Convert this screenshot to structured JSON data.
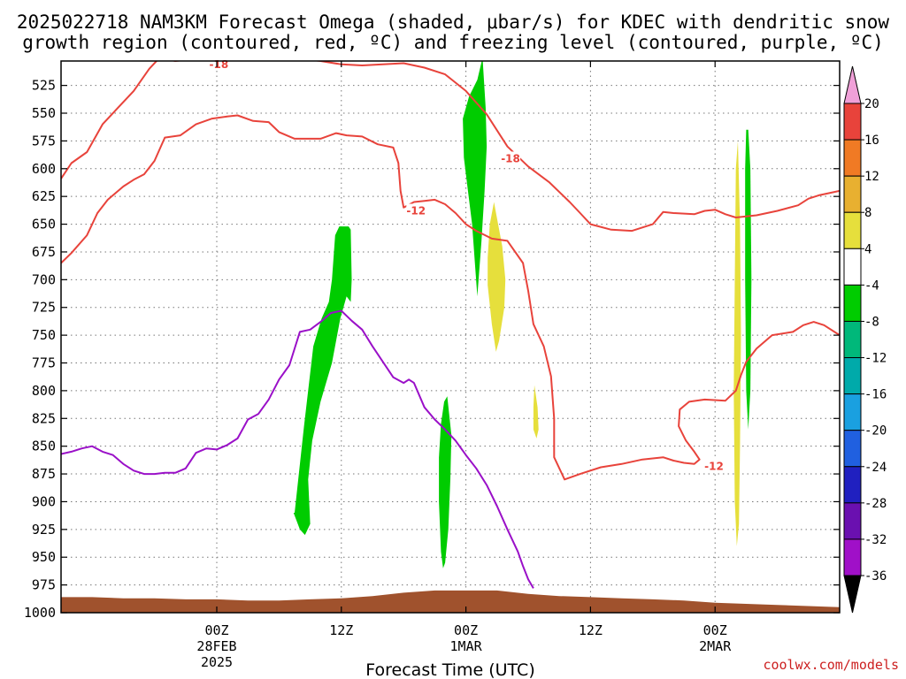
{
  "title": {
    "line1": "2025022718 NAM3KM Forecast Omega (shaded, μbar/s) for KDEC with dendritic snow",
    "line2": "growth region (contoured, red, ºC) and freezing level (contoured, purple, ºC)"
  },
  "credit": "coolwx.com/models",
  "chart_data": {
    "type": "time-height cross-section",
    "xlabel": "Forecast Time (UTC)",
    "x_unit": "hours since 2025-02-27 18Z",
    "xlim": [
      3,
      78
    ],
    "x_ticks": [
      {
        "x": 18,
        "lines": [
          "00Z",
          "28FEB",
          "2025"
        ]
      },
      {
        "x": 30,
        "lines": [
          "12Z"
        ]
      },
      {
        "x": 42,
        "lines": [
          "00Z",
          "1MAR"
        ]
      },
      {
        "x": 54,
        "lines": [
          "12Z"
        ]
      },
      {
        "x": 66,
        "lines": [
          "00Z",
          "2MAR"
        ]
      }
    ],
    "ylabel": "",
    "y_unit": "hPa",
    "ylim": [
      1000,
      503
    ],
    "y_ticks": [
      525,
      550,
      575,
      600,
      625,
      650,
      675,
      700,
      725,
      750,
      775,
      800,
      825,
      850,
      875,
      900,
      925,
      950,
      975,
      1000
    ],
    "grid": true,
    "colorbar": {
      "unit": "μbar/s",
      "levels": [
        20,
        16,
        12,
        8,
        4,
        -4,
        -8,
        -12,
        -16,
        -20,
        -24,
        -28,
        -32,
        -36
      ],
      "bands": [
        {
          "color": "#f0a0d8"
        },
        {
          "color": "#e8433b"
        },
        {
          "color": "#f07a24"
        },
        {
          "color": "#e8b030"
        },
        {
          "color": "#e6df3c"
        },
        {
          "color": "#ffffff"
        },
        {
          "color": "#00cc00"
        },
        {
          "color": "#00b87a"
        },
        {
          "color": "#00aaaa"
        },
        {
          "color": "#1aa0e0"
        },
        {
          "color": "#2060e0"
        },
        {
          "color": "#2020c0"
        },
        {
          "color": "#6a10b0"
        },
        {
          "color": "#a010c8"
        },
        {
          "color": "#aaaaaa"
        },
        {
          "color": "#000000"
        }
      ]
    },
    "shaded_regions": [
      {
        "name": "omega -4 to -8",
        "color": "#00cc00",
        "points": [
          [
            25.5,
            910
          ],
          [
            26.4,
            832
          ],
          [
            27.3,
            760
          ],
          [
            28.1,
            735
          ],
          [
            28.8,
            720
          ],
          [
            29.1,
            700
          ],
          [
            29.4,
            660
          ],
          [
            29.8,
            652
          ],
          [
            30.7,
            652
          ],
          [
            30.9,
            655
          ],
          [
            31.0,
            700
          ],
          [
            30.9,
            720
          ],
          [
            30.5,
            715
          ],
          [
            29.9,
            735
          ],
          [
            29.1,
            775
          ],
          [
            28.0,
            810
          ],
          [
            27.2,
            845
          ],
          [
            26.8,
            880
          ],
          [
            27.0,
            920
          ],
          [
            26.5,
            930
          ],
          [
            26.0,
            925
          ],
          [
            25.4,
            910
          ]
        ]
      },
      {
        "name": "omega -4 to -8",
        "color": "#00cc00",
        "points": [
          [
            40.2,
            805
          ],
          [
            40.6,
            840
          ],
          [
            40.5,
            880
          ],
          [
            40.3,
            925
          ],
          [
            40.0,
            955
          ],
          [
            39.8,
            960
          ],
          [
            39.6,
            945
          ],
          [
            39.4,
            900
          ],
          [
            39.4,
            860
          ],
          [
            39.6,
            830
          ],
          [
            39.9,
            810
          ]
        ]
      },
      {
        "name": "omega -4 to -8",
        "color": "#00cc00",
        "points": [
          [
            43.6,
            500
          ],
          [
            43.9,
            545
          ],
          [
            44.0,
            580
          ],
          [
            43.8,
            620
          ],
          [
            43.5,
            665
          ],
          [
            43.1,
            715
          ],
          [
            42.9,
            690
          ],
          [
            42.6,
            650
          ],
          [
            42.2,
            620
          ],
          [
            41.8,
            590
          ],
          [
            41.7,
            555
          ],
          [
            42.3,
            535
          ],
          [
            43.1,
            520
          ]
        ]
      },
      {
        "name": "omega -4 to -8",
        "color": "#00cc00",
        "points": [
          [
            69.2,
            565
          ],
          [
            69.4,
            600
          ],
          [
            69.5,
            700
          ],
          [
            69.4,
            800
          ],
          [
            69.2,
            835
          ],
          [
            69.0,
            800
          ],
          [
            68.9,
            700
          ],
          [
            68.9,
            600
          ],
          [
            69.0,
            565
          ]
        ]
      },
      {
        "name": "omega 4 to 8",
        "color": "#e6df3c",
        "points": [
          [
            44.7,
            630
          ],
          [
            45.5,
            670
          ],
          [
            45.8,
            700
          ],
          [
            45.7,
            725
          ],
          [
            45.2,
            755
          ],
          [
            44.9,
            765
          ],
          [
            44.5,
            740
          ],
          [
            44.1,
            705
          ],
          [
            44.1,
            680
          ],
          [
            44.3,
            650
          ]
        ]
      },
      {
        "name": "omega 4 to 8",
        "color": "#e6df3c",
        "points": [
          [
            48.6,
            795
          ],
          [
            48.9,
            815
          ],
          [
            49.0,
            835
          ],
          [
            48.8,
            843
          ],
          [
            48.5,
            835
          ],
          [
            48.5,
            815
          ]
        ]
      },
      {
        "name": "omega 4 to 8",
        "color": "#e6df3c",
        "points": [
          [
            68.2,
            575
          ],
          [
            68.4,
            650
          ],
          [
            68.5,
            750
          ],
          [
            68.4,
            850
          ],
          [
            68.3,
            920
          ],
          [
            68.1,
            940
          ],
          [
            67.9,
            900
          ],
          [
            67.8,
            800
          ],
          [
            67.9,
            700
          ],
          [
            68.0,
            600
          ]
        ]
      }
    ],
    "terrain": {
      "color": "#a0522d",
      "points": [
        [
          3,
          986
        ],
        [
          6,
          986
        ],
        [
          9,
          987
        ],
        [
          12,
          987
        ],
        [
          15,
          988
        ],
        [
          18,
          988
        ],
        [
          21,
          989
        ],
        [
          24,
          989
        ],
        [
          27,
          988
        ],
        [
          30,
          987
        ],
        [
          33,
          985
        ],
        [
          36,
          982
        ],
        [
          39,
          980
        ],
        [
          42,
          980
        ],
        [
          45,
          980
        ],
        [
          48,
          983
        ],
        [
          51,
          985
        ],
        [
          54,
          986
        ],
        [
          57,
          987
        ],
        [
          60,
          988
        ],
        [
          63,
          989
        ],
        [
          66,
          991
        ],
        [
          69,
          992
        ],
        [
          72,
          993
        ],
        [
          75,
          994
        ],
        [
          78,
          995
        ]
      ]
    },
    "series": [
      {
        "name": "-18",
        "color": "#e8433b",
        "points": [
          [
            3,
            609
          ],
          [
            4,
            595
          ],
          [
            5.5,
            585
          ],
          [
            7,
            560
          ],
          [
            8.5,
            545
          ],
          [
            10,
            530
          ],
          [
            11.5,
            510
          ],
          [
            12.5,
            500
          ],
          [
            14,
            503
          ],
          [
            16,
            501
          ],
          [
            18,
            500
          ],
          [
            20,
            499
          ],
          [
            22,
            501
          ],
          [
            24,
            502
          ],
          [
            26,
            501
          ],
          [
            28,
            503
          ],
          [
            30,
            506
          ],
          [
            32,
            507
          ],
          [
            34,
            506
          ],
          [
            36,
            505
          ],
          [
            38,
            509
          ],
          [
            40,
            515
          ],
          [
            42,
            530
          ],
          [
            44,
            551
          ],
          [
            46,
            580
          ],
          [
            48,
            598
          ],
          [
            50,
            612
          ],
          [
            52,
            630
          ],
          [
            53,
            640
          ],
          [
            54,
            650
          ],
          [
            56,
            655
          ],
          [
            58,
            656
          ],
          [
            60,
            650
          ],
          [
            61,
            639
          ],
          [
            62,
            640
          ],
          [
            64,
            641
          ],
          [
            65,
            638
          ],
          [
            66,
            637
          ],
          [
            67,
            641
          ],
          [
            68,
            644
          ],
          [
            69,
            643
          ],
          [
            70,
            642
          ],
          [
            72,
            638
          ],
          [
            74,
            633
          ],
          [
            75,
            627
          ],
          [
            76,
            624
          ],
          [
            77,
            622
          ],
          [
            78,
            620
          ]
        ]
      },
      {
        "name": "-12",
        "color": "#e8433b",
        "points": [
          [
            3,
            685
          ],
          [
            4,
            676
          ],
          [
            5.5,
            660
          ],
          [
            6.5,
            640
          ],
          [
            7.5,
            628
          ],
          [
            9,
            616
          ],
          [
            10,
            610
          ],
          [
            11,
            605
          ],
          [
            12,
            593
          ],
          [
            13,
            572
          ],
          [
            14.5,
            570
          ],
          [
            16,
            560
          ],
          [
            17.5,
            555
          ],
          [
            19,
            553
          ],
          [
            20,
            552
          ],
          [
            21.5,
            557
          ],
          [
            23,
            558
          ],
          [
            24,
            567
          ],
          [
            25.5,
            573
          ],
          [
            27,
            573
          ],
          [
            28,
            573
          ],
          [
            29.5,
            568
          ],
          [
            30.5,
            570
          ],
          [
            32,
            571
          ],
          [
            33.5,
            578
          ],
          [
            35,
            581
          ],
          [
            35.5,
            595
          ],
          [
            35.7,
            620
          ],
          [
            36,
            635
          ],
          [
            37,
            630
          ],
          [
            38,
            629
          ],
          [
            39,
            628
          ],
          [
            40,
            632
          ],
          [
            41,
            640
          ],
          [
            42,
            650
          ],
          [
            43,
            656
          ],
          [
            44.5,
            663
          ],
          [
            46,
            665
          ],
          [
            47.5,
            685
          ],
          [
            48,
            710
          ],
          [
            48.5,
            740
          ],
          [
            49.5,
            760
          ],
          [
            50.2,
            787
          ],
          [
            50.5,
            825
          ],
          [
            50.5,
            860
          ],
          [
            51.5,
            880
          ],
          [
            53,
            875
          ],
          [
            55,
            869
          ],
          [
            57,
            866
          ],
          [
            59,
            862
          ],
          [
            61,
            860
          ],
          [
            62,
            863
          ],
          [
            63,
            865
          ],
          [
            64,
            866
          ],
          [
            64.5,
            862
          ],
          [
            64,
            855
          ],
          [
            63.2,
            845
          ],
          [
            62.5,
            832
          ],
          [
            62.6,
            817
          ],
          [
            63.5,
            810
          ],
          [
            65,
            808
          ],
          [
            67,
            809
          ],
          [
            68,
            800
          ],
          [
            68.5,
            786
          ],
          [
            69,
            774
          ],
          [
            70,
            762
          ],
          [
            71.5,
            750
          ],
          [
            73.5,
            747
          ],
          [
            74.5,
            741
          ],
          [
            75.5,
            738
          ],
          [
            76.5,
            741
          ],
          [
            78,
            750
          ]
        ]
      },
      {
        "name": "0",
        "color": "#9a10c8",
        "points": [
          [
            3,
            857
          ],
          [
            4,
            855
          ],
          [
            5,
            852
          ],
          [
            6,
            850
          ],
          [
            7,
            855
          ],
          [
            8,
            858
          ],
          [
            9,
            866
          ],
          [
            10,
            872
          ],
          [
            11,
            875
          ],
          [
            12,
            875
          ],
          [
            13,
            874
          ],
          [
            14,
            874
          ],
          [
            15,
            870
          ],
          [
            16,
            856
          ],
          [
            17,
            852
          ],
          [
            18,
            853
          ],
          [
            19,
            849
          ],
          [
            20,
            843
          ],
          [
            21,
            826
          ],
          [
            22,
            821
          ],
          [
            23,
            808
          ],
          [
            24,
            790
          ],
          [
            25,
            777
          ],
          [
            26,
            747
          ],
          [
            27,
            745
          ],
          [
            28,
            738
          ],
          [
            29,
            730
          ],
          [
            30,
            728
          ],
          [
            31,
            737
          ],
          [
            32,
            745
          ],
          [
            33,
            760
          ],
          [
            34,
            774
          ],
          [
            35,
            788
          ],
          [
            36,
            793
          ],
          [
            36.5,
            790
          ],
          [
            37,
            793
          ],
          [
            38,
            815
          ],
          [
            39,
            826
          ],
          [
            40,
            835
          ],
          [
            41,
            845
          ],
          [
            42,
            858
          ],
          [
            43,
            870
          ],
          [
            44,
            885
          ],
          [
            45,
            904
          ],
          [
            46,
            925
          ],
          [
            47,
            945
          ],
          [
            47.5,
            958
          ],
          [
            48,
            970
          ],
          [
            48.5,
            978
          ]
        ]
      }
    ],
    "contour_labels": [
      {
        "text": "-18",
        "x": 18.2,
        "y": 506
      },
      {
        "text": "-18",
        "x": 46.3,
        "y": 591
      },
      {
        "text": "-12",
        "x": 37.2,
        "y": 638
      },
      {
        "text": "-12",
        "x": 65.9,
        "y": 868
      }
    ]
  }
}
